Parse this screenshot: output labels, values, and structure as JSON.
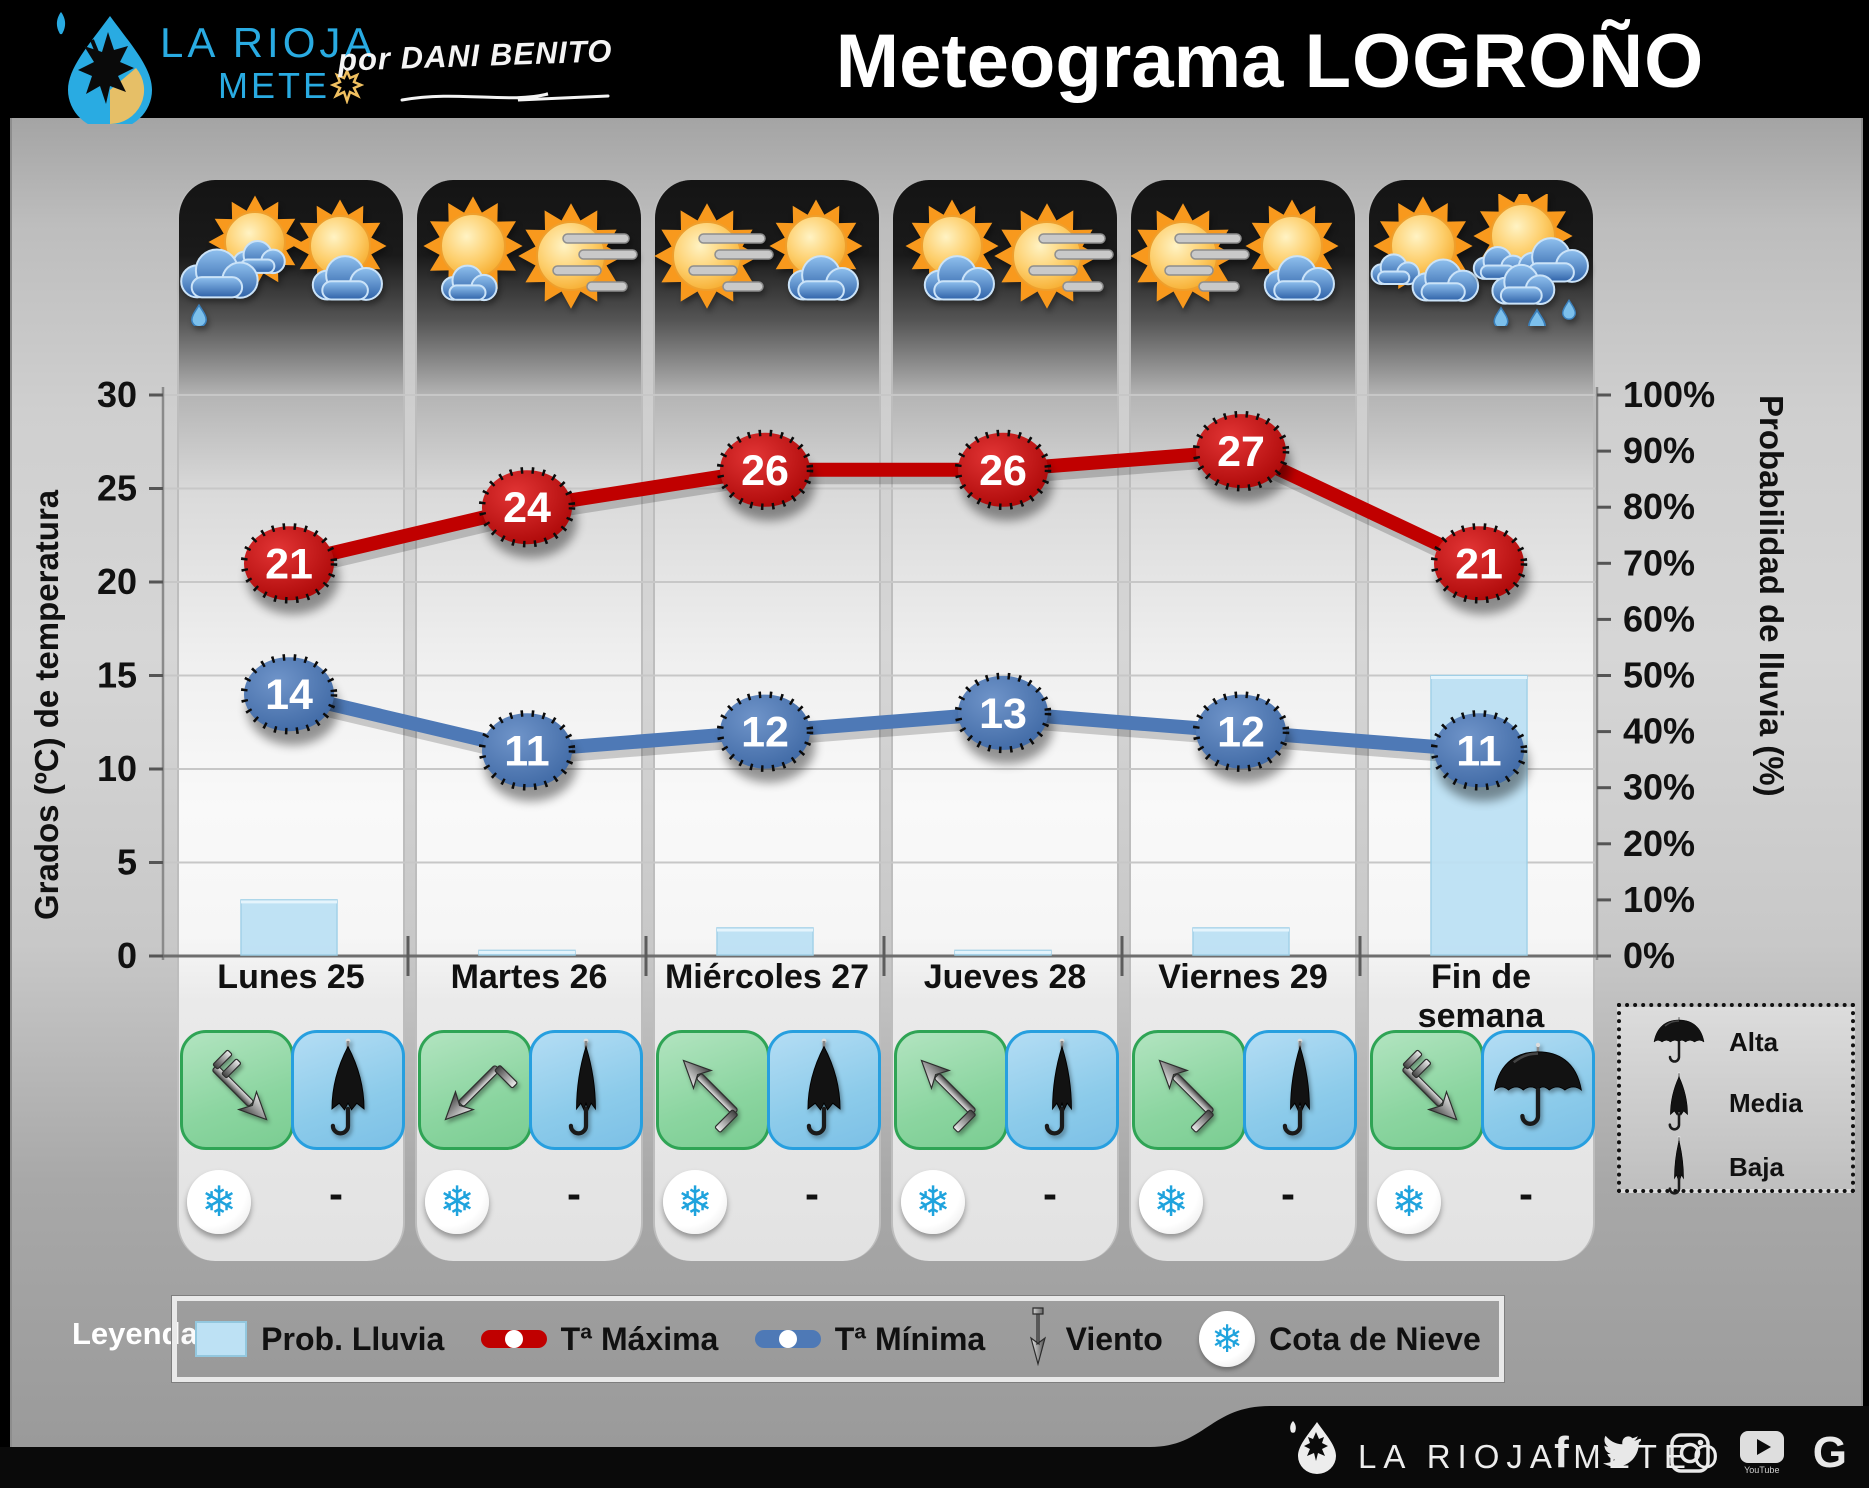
{
  "header": {
    "logo_line1": "LA RIOJA",
    "logo_line2": "METE",
    "byline": "por DANI BENITO",
    "title_part1": "Meteograma",
    "title_part2": "LOGROÑO"
  },
  "chart_data": {
    "type": "combo",
    "categories": [
      "Lunes 25",
      "Martes 26",
      "Miércoles 27",
      "Jueves 28",
      "Viernes 29",
      "Fin de semana"
    ],
    "series": [
      {
        "name": "Tª Máxima",
        "type": "line",
        "axis": "left",
        "color": "#c00000",
        "values": [
          21,
          24,
          26,
          26,
          27,
          21
        ]
      },
      {
        "name": "Tª Mínima",
        "type": "line",
        "axis": "left",
        "color": "#4e79b6",
        "values": [
          14,
          11,
          12,
          13,
          12,
          11
        ]
      },
      {
        "name": "Prob. Lluvia",
        "type": "bar",
        "axis": "right",
        "color": "#bde1f4",
        "values": [
          10,
          1,
          5,
          1,
          5,
          50
        ]
      }
    ],
    "ylabel_left": "Grados (ºC) de temperatura",
    "ylim_left": [
      0,
      30
    ],
    "yticks_left": [
      0,
      5,
      10,
      15,
      20,
      25,
      30
    ],
    "ylabel_right": "Probabilidad de lluvia (%)",
    "ylim_right": [
      0,
      100
    ],
    "yticks_right": [
      "0%",
      "10%",
      "20%",
      "30%",
      "40%",
      "50%",
      "60%",
      "70%",
      "80%",
      "90%",
      "100%"
    ],
    "grid": "horizontal",
    "legend_position": "bottom"
  },
  "days": [
    {
      "label": "Lunes 25",
      "icons": [
        "sun_clouds_rain",
        "sun_cloud"
      ],
      "wind": {
        "dir": "SE",
        "rotation": 45,
        "tail": "barb"
      },
      "umbrella": "media",
      "snow_level": "-"
    },
    {
      "label": "Martes 26",
      "icons": [
        "sun_small_cloud",
        "sun_wind"
      ],
      "wind": {
        "dir": "SW",
        "rotation": 135,
        "tail": "bent"
      },
      "umbrella": "baja",
      "snow_level": "-"
    },
    {
      "label": "Miércoles 27",
      "icons": [
        "sun_wind",
        "sun_cloud"
      ],
      "wind": {
        "dir": "NW",
        "rotation": -135,
        "tail": "bent"
      },
      "umbrella": "media",
      "snow_level": "-"
    },
    {
      "label": "Jueves 28",
      "icons": [
        "sun_cloud",
        "sun_wind"
      ],
      "wind": {
        "dir": "NW",
        "rotation": -135,
        "tail": "bent"
      },
      "umbrella": "baja",
      "snow_level": "-"
    },
    {
      "label": "Viernes 29",
      "icons": [
        "sun_wind",
        "sun_cloud"
      ],
      "wind": {
        "dir": "NW",
        "rotation": -135,
        "tail": "bent"
      },
      "umbrella": "baja",
      "snow_level": "-"
    },
    {
      "label": "Fin de semana",
      "icons": [
        "sun_clouds",
        "clouds_rain"
      ],
      "wind": {
        "dir": "SE",
        "rotation": 45,
        "tail": "barb"
      },
      "umbrella": "alta",
      "snow_level": "-"
    }
  ],
  "legend": {
    "label": "Leyenda:",
    "items": [
      {
        "key": "rain",
        "label": "Prob. Lluvia"
      },
      {
        "key": "tmax",
        "label": "Tª Máxima"
      },
      {
        "key": "tmin",
        "label": "Tª Mínima"
      },
      {
        "key": "wind",
        "label": "Viento"
      },
      {
        "key": "snow",
        "label": "Cota de Nieve"
      }
    ]
  },
  "umbrella_legend": {
    "alta": "Alta",
    "media": "Media",
    "baja": "Baja"
  },
  "footer": {
    "brand": "LA RIOJA METEO",
    "youtube_caption": "YouTube",
    "social": [
      "facebook",
      "twitter",
      "instagram",
      "youtube",
      "google"
    ]
  },
  "colors": {
    "accent_blue": "#29ABE2",
    "gold": "#F0C060",
    "tmax": "#c00000",
    "tmin": "#4e79b6",
    "rain_bar": "#bde1f4",
    "green_box": "#8bd5a0",
    "blue_box": "#8ccbea",
    "snowflake": "#1fa3dd"
  }
}
